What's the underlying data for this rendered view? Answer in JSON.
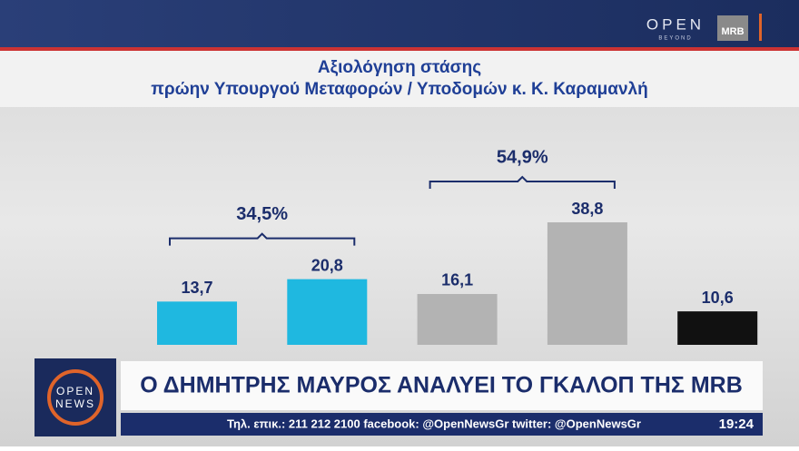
{
  "header": {
    "logo": "OPEN",
    "logo_sub": "BEYOND",
    "brand": "MRB"
  },
  "chart_data": {
    "type": "bar",
    "title": "Αξιολόγηση στάσης",
    "subtitle": "πρώην Υπουργού Μεταφορών / Υποδομών κ. Κ. Καραμανλή",
    "categories": [
      null,
      null,
      null,
      null,
      null
    ],
    "values": [
      13.7,
      20.8,
      16.1,
      38.8,
      10.6
    ],
    "value_labels": [
      "13,7",
      "20,8",
      "16,1",
      "38,8",
      "10,6"
    ],
    "colors": [
      "#1fb8e0",
      "#1fb8e0",
      "#b3b3b3",
      "#b3b3b3",
      "#111111"
    ],
    "annotations": [
      "34,5%",
      "54,9%"
    ]
  },
  "lower_third": {
    "logo_top": "OPEN",
    "logo_bottom": "NEWS",
    "headline": "Ο ΔΗΜΗΤΡΗΣ ΜΑΥΡΟΣ ΑΝΑΛΥΕΙ ΤΟ ΓΚΑΛΟΠ ΤΗΣ MRB",
    "ticker": "Τηλ. επικ.: 211 212 2100 facebook: @OpenNewsGr twitter: @OpenNewsGr",
    "clock": "19:24"
  }
}
